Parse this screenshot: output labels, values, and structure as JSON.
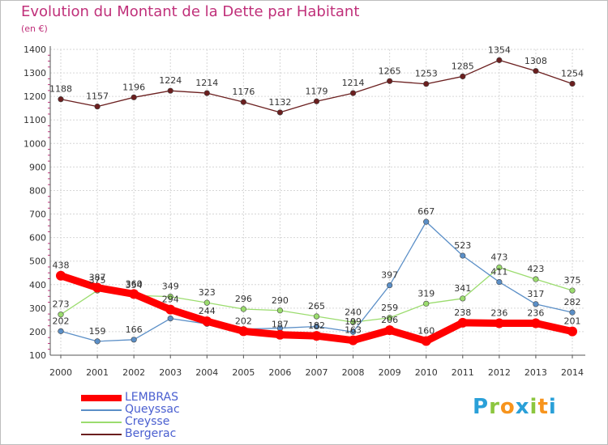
{
  "page": {
    "title": "Evolution du Montant de la Dette par Habitant",
    "unit": "(en €)"
  },
  "brand": {
    "letters": [
      "P",
      "r",
      "o",
      "x",
      "i",
      "t",
      "i"
    ],
    "colors": [
      "#2aa0d8",
      "#8cc63f",
      "#f7941d",
      "#2aa0d8",
      "#8cc63f",
      "#f7941d",
      "#2aa0d8"
    ]
  },
  "chart_data": {
    "type": "line",
    "x": [
      "2000",
      "2001",
      "2002",
      "2003",
      "2004",
      "2005",
      "2006",
      "2007",
      "2008",
      "2009",
      "2010",
      "2011",
      "2012",
      "2013",
      "2014"
    ],
    "ylim": [
      100,
      1400
    ],
    "yticks": [
      100,
      200,
      300,
      400,
      500,
      600,
      700,
      800,
      900,
      1000,
      1100,
      1200,
      1300,
      1400
    ],
    "grid": true,
    "legend_position": "bottom-left",
    "series": [
      {
        "name": "Bergerac",
        "color": "#6b1f1f",
        "values": [
          1188,
          1157,
          1196,
          1224,
          1214,
          1176,
          1132,
          1179,
          1214,
          1265,
          1253,
          1285,
          1354,
          1308,
          1254
        ],
        "labels": [
          "1188",
          "1157",
          "1196",
          "1224",
          "1214",
          "1176",
          "1132",
          "1179",
          "1214",
          "1265",
          "1253",
          "1285",
          "1354",
          "1308",
          "1254"
        ]
      },
      {
        "name": "Creysse",
        "color": "#9bdc6e",
        "values": [
          273,
          375,
          354,
          349,
          323,
          296,
          290,
          265,
          240,
          259,
          319,
          341,
          473,
          423,
          375
        ],
        "labels": [
          "273",
          "375",
          "354",
          "349",
          "323",
          "296",
          "290",
          "265",
          "240",
          "259",
          "319",
          "341",
          "473",
          "423",
          "375"
        ]
      },
      {
        "name": "Queyssac",
        "color": "#5b8fc7",
        "values": [
          202,
          159,
          166,
          256,
          233,
          211,
          215,
          222,
          199,
          397,
          667,
          523,
          411,
          317,
          282
        ],
        "labels": [
          "202",
          "159",
          "166",
          "",
          "",
          "",
          "",
          "",
          "199",
          "397",
          "667",
          "523",
          "411",
          "317",
          "282"
        ]
      },
      {
        "name": "LEMBRAS",
        "color": "#ff0000",
        "values": [
          438,
          387,
          360,
          294,
          244,
          202,
          187,
          182,
          163,
          206,
          160,
          238,
          236,
          236,
          201
        ],
        "labels": [
          "438",
          "387",
          "360",
          "294",
          "244",
          "202",
          "187",
          "182",
          "163",
          "206",
          "160",
          "238",
          "236",
          "236",
          "201"
        ]
      }
    ]
  },
  "legend": {
    "items": [
      {
        "name": "LEMBRAS",
        "color": "#ff0000"
      },
      {
        "name": "Queyssac",
        "color": "#5b8fc7"
      },
      {
        "name": "Creysse",
        "color": "#9bdc6e"
      },
      {
        "name": "Bergerac",
        "color": "#6b1f1f"
      }
    ]
  }
}
